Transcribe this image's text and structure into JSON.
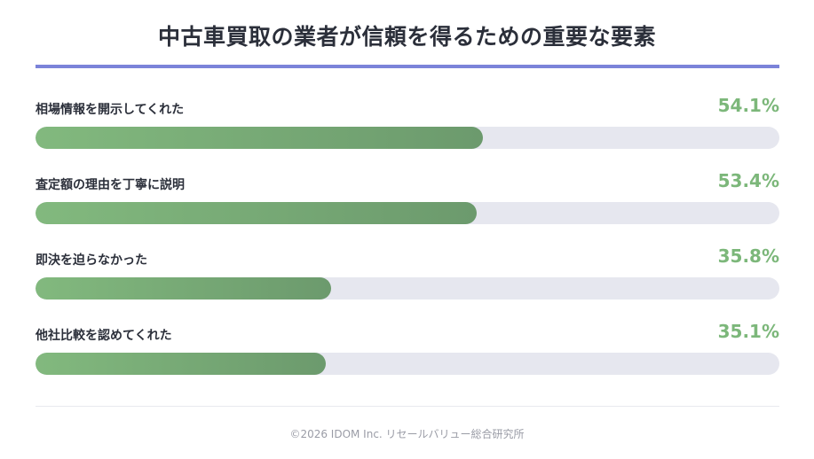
{
  "title": "中古車買取の業者が信頼を得るための重要な要素",
  "chart_data": {
    "type": "bar",
    "orientation": "horizontal",
    "title": "中古車買取の業者が信頼を得るための重要な要素",
    "categories": [
      "相場情報を開示してくれた",
      "査定額の理由を丁寧に説明",
      "即決を迫らなかった",
      "他社比較を認めてくれた"
    ],
    "values": [
      54.1,
      53.4,
      35.8,
      35.1
    ],
    "value_labels": [
      "54.1%",
      "53.4%",
      "35.8%",
      "35.1%"
    ],
    "xlim": [
      0,
      90
    ],
    "colors": {
      "bar_start": "#82b97e",
      "bar_end": "#6c9a6d",
      "track": "#e6e7ef",
      "value_text": "#7cb77a",
      "accent_rule": "#7b83d9"
    }
  },
  "footer": "©2026 IDOM Inc. リセールバリュー総合研究所"
}
